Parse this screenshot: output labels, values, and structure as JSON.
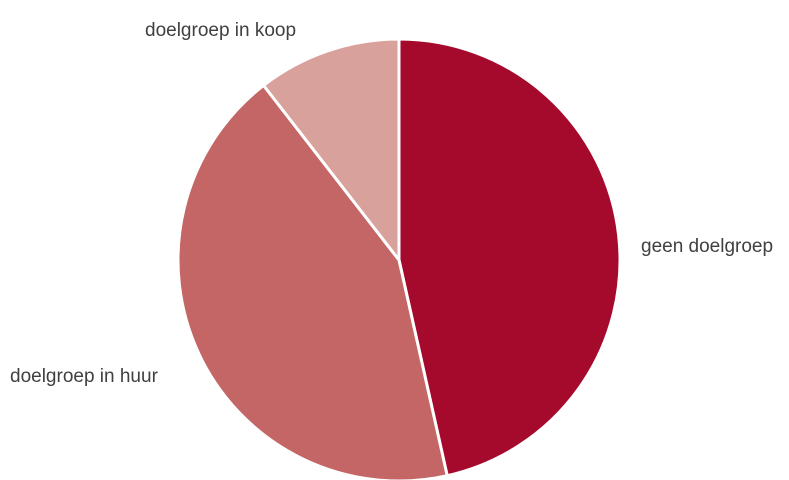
{
  "chart_data": {
    "type": "pie",
    "title": "",
    "legend": "none",
    "slices": [
      {
        "label": "geen doelgroep",
        "value": 46.5,
        "color": "#a50a2d"
      },
      {
        "label": "doelgroep in huur",
        "value": 43,
        "color": "#c46665"
      },
      {
        "label": "doelgroep in koop",
        "value": 10.5,
        "color": "#d9a19b"
      }
    ]
  }
}
